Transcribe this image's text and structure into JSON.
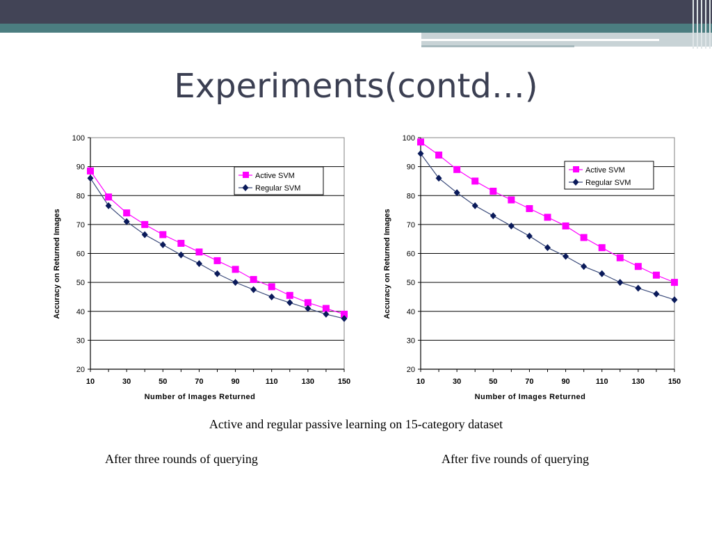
{
  "slide": {
    "title": "Experiments(contd…)",
    "caption_main": "Active and regular passive learning on 15-category dataset",
    "caption_left": "After three rounds of querying",
    "caption_right": "After five rounds of querying"
  },
  "colors": {
    "active": "#ff00ff",
    "regular": "#0a1a5a",
    "plot_bg": "#ffffff"
  },
  "chart_data": [
    {
      "type": "line",
      "title": "",
      "xlabel": "Number of Images Returned",
      "ylabel": "Accuracy on Returned Images",
      "x": [
        10,
        20,
        30,
        40,
        50,
        60,
        70,
        80,
        90,
        100,
        110,
        120,
        130,
        140,
        150
      ],
      "xticks": [
        10,
        30,
        50,
        70,
        90,
        110,
        130,
        150
      ],
      "yticks": [
        20,
        30,
        40,
        50,
        60,
        70,
        80,
        90,
        100
      ],
      "xlim": [
        10,
        150
      ],
      "ylim": [
        20,
        100
      ],
      "legend_position": "top-right",
      "series": [
        {
          "name": "Active SVM",
          "marker": "square",
          "values": [
            88.5,
            79.5,
            74,
            70,
            66.5,
            63.5,
            60.5,
            57.5,
            54.5,
            51,
            48.5,
            45.5,
            43,
            41,
            39
          ]
        },
        {
          "name": "Regular SVM",
          "marker": "diamond",
          "values": [
            86,
            76.5,
            71,
            66.5,
            63,
            59.5,
            56.5,
            53,
            50,
            47.5,
            45,
            43,
            41,
            39,
            37.5
          ]
        }
      ]
    },
    {
      "type": "line",
      "title": "",
      "xlabel": "Number of Images Returned",
      "ylabel": "Accuracy on Returned Images",
      "x": [
        10,
        20,
        30,
        40,
        50,
        60,
        70,
        80,
        90,
        100,
        110,
        120,
        130,
        140,
        150
      ],
      "xticks": [
        10,
        30,
        50,
        70,
        90,
        110,
        130,
        150
      ],
      "yticks": [
        20,
        30,
        40,
        50,
        60,
        70,
        80,
        90,
        100
      ],
      "xlim": [
        10,
        150
      ],
      "ylim": [
        20,
        100
      ],
      "legend_position": "top-right",
      "series": [
        {
          "name": "Active SVM",
          "marker": "square",
          "values": [
            98.5,
            94,
            89,
            85,
            81.5,
            78.5,
            75.5,
            72.5,
            69.5,
            65.5,
            62,
            58.5,
            55.5,
            52.5,
            50
          ]
        },
        {
          "name": "Regular SVM",
          "marker": "diamond",
          "values": [
            94.5,
            86,
            81,
            76.5,
            73,
            69.5,
            66,
            62,
            59,
            55.5,
            53,
            50,
            48,
            46,
            44
          ]
        }
      ]
    }
  ]
}
